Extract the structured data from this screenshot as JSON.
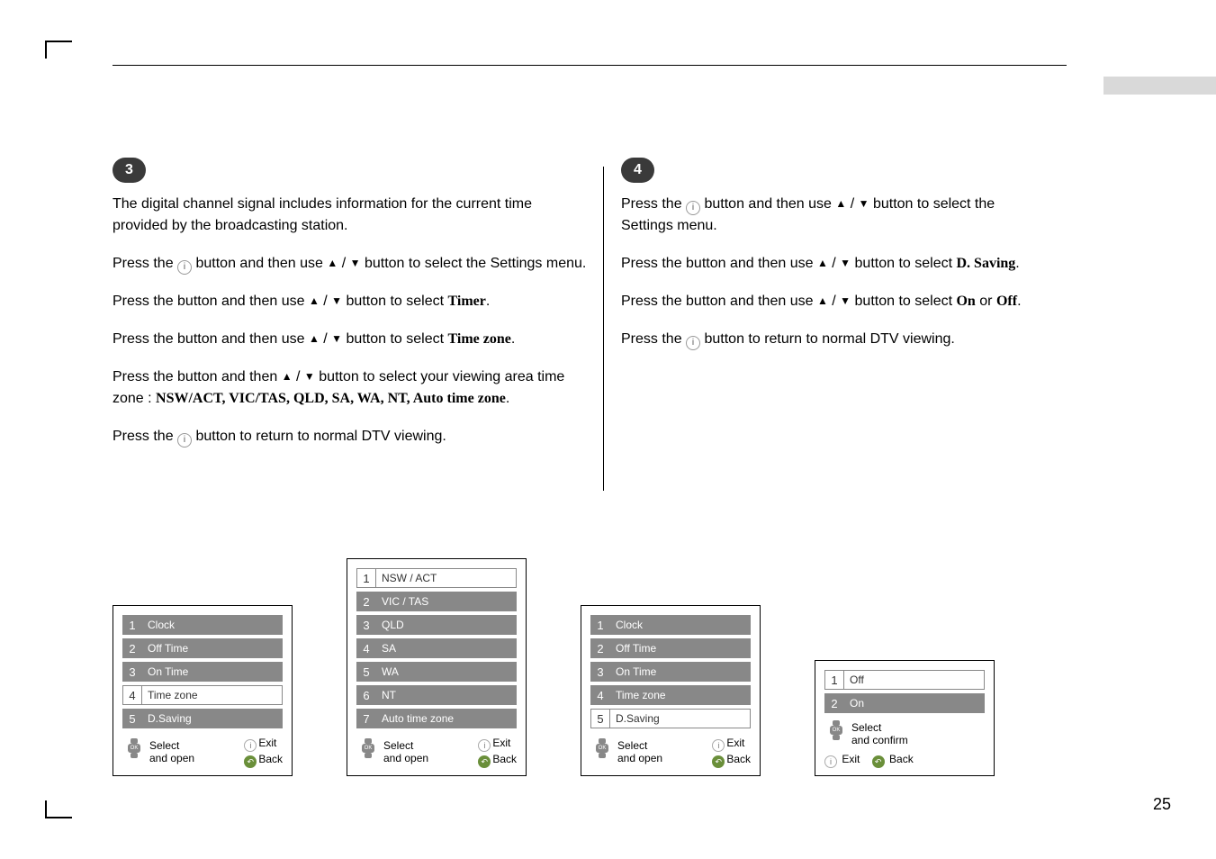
{
  "page_number": "25",
  "step3": {
    "badge": "3",
    "p1": "The digital channel signal includes information for the current time provided by the broadcasting station.",
    "p2a": "Press the ",
    "p2b": " button and then use ",
    "p2c": " button to select the Settings menu.",
    "p3a": "Press the ",
    "p3b": " button and then use ",
    "p3c": " button to select ",
    "p3d": "Timer",
    "p3e": ".",
    "p4a": "Press the ",
    "p4b": " button and then use ",
    "p4c": " button to select ",
    "p4d": "Time zone",
    "p4e": ".",
    "p5a": "Press the ",
    "p5b": " button and then ",
    "p5c": " button to select your viewing area time zone : ",
    "p5zones": "NSW/ACT, VIC/TAS, QLD, SA, WA, NT, Auto time zone",
    "p5e": ".",
    "p6a": "Press the ",
    "p6b": " button to return to normal DTV viewing."
  },
  "step4": {
    "badge": "4",
    "p1a": "Press the ",
    "p1b": " button and then use ",
    "p1c": " button to select the Settings menu.",
    "p2a": "Press the ",
    "p2b": " button and then use ",
    "p2c": " button to select ",
    "p2d": "D. Saving",
    "p2e": ".",
    "p3a": "Press the ",
    "p3b": " button and then use ",
    "p3c": " button to select ",
    "p3d": "On",
    "p3e": " or ",
    "p3f": "Off",
    "p3g": ".",
    "p4a": "Press the ",
    "p4b": " button to return to normal DTV viewing."
  },
  "menu1": {
    "items": [
      {
        "n": "1",
        "label": "Clock",
        "hl": true
      },
      {
        "n": "2",
        "label": "Off Time",
        "hl": true
      },
      {
        "n": "3",
        "label": "On Time",
        "hl": true
      },
      {
        "n": "4",
        "label": "Time zone",
        "hl": false
      },
      {
        "n": "5",
        "label": "D.Saving",
        "hl": true
      }
    ]
  },
  "menu2": {
    "items": [
      {
        "n": "1",
        "label": "NSW / ACT",
        "hl": false
      },
      {
        "n": "2",
        "label": "VIC / TAS",
        "hl": true
      },
      {
        "n": "3",
        "label": "QLD",
        "hl": true
      },
      {
        "n": "4",
        "label": "SA",
        "hl": true
      },
      {
        "n": "5",
        "label": "WA",
        "hl": true
      },
      {
        "n": "6",
        "label": "NT",
        "hl": true
      },
      {
        "n": "7",
        "label": "Auto time zone",
        "hl": true
      }
    ]
  },
  "menu3": {
    "items": [
      {
        "n": "1",
        "label": "Clock",
        "hl": true
      },
      {
        "n": "2",
        "label": "Off Time",
        "hl": true
      },
      {
        "n": "3",
        "label": "On Time",
        "hl": true
      },
      {
        "n": "4",
        "label": "Time zone",
        "hl": true
      },
      {
        "n": "5",
        "label": "D.Saving",
        "hl": false
      }
    ]
  },
  "menu4": {
    "items": [
      {
        "n": "1",
        "label": "Off",
        "hl": false
      },
      {
        "n": "2",
        "label": "On",
        "hl": true
      }
    ]
  },
  "footer": {
    "select_open": "Select\nand open",
    "select_confirm": "Select\nand confirm",
    "exit": "Exit",
    "back": "Back"
  },
  "triangles": {
    "up": "▲",
    "down": "▼"
  },
  "icons": {
    "i": "i",
    "ok": "OK"
  }
}
